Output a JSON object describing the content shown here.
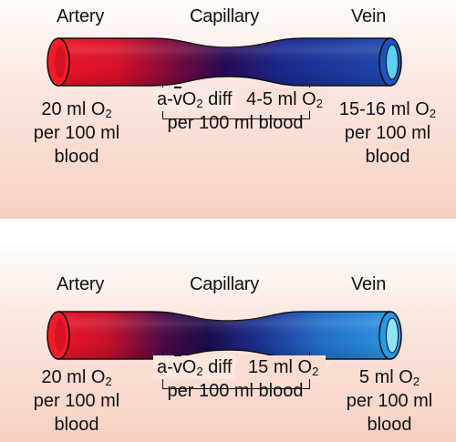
{
  "panels": [
    {
      "artery_label": "Artery",
      "capillary_label": "Capillary",
      "vein_label": "Vein",
      "artery_o2": {
        "amount": "20 ml O",
        "sub": "2",
        "line2": "per 100 ml",
        "line3": "blood"
      },
      "diff": {
        "a": "a-",
        "v": "v",
        "o2": "O",
        "sub": "2",
        "tail": " diff",
        "amount": "4-5 ml O",
        "amount_sub": "2",
        "line3": "per 100 ml blood"
      },
      "vein_o2": {
        "amount": "15-16 ml O",
        "sub": "2",
        "line2": "per 100 ml",
        "line3": "blood"
      }
    },
    {
      "artery_label": "Artery",
      "capillary_label": "Capillary",
      "vein_label": "Vein",
      "artery_o2": {
        "amount": "20 ml O",
        "sub": "2",
        "line2": "per 100 ml",
        "line3": "blood"
      },
      "diff": {
        "a": "a-",
        "v": "v",
        "o2": "O",
        "sub": "2",
        "tail": " diff",
        "amount": "15 ml O",
        "amount_sub": "2",
        "line3": "per 100 ml blood"
      },
      "vein_o2": {
        "amount": "5 ml O",
        "sub": "2",
        "line2": "per 100 ml",
        "line3": "blood"
      }
    }
  ],
  "colors": {
    "artery_red": "#f01020",
    "capillary_dark": "#2a0a50",
    "vein_blue_top": "#1f3fa8",
    "vein_blue_bottom": "#2a8ee0"
  }
}
